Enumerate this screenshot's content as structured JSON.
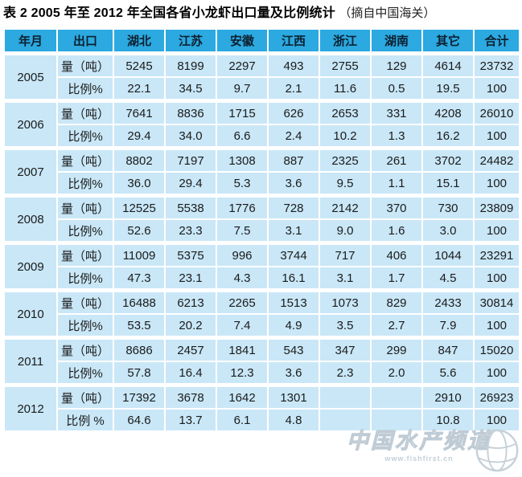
{
  "title": {
    "main": "表 2 2005 年至 2012 年全国各省小龙虾出口量及比例统计",
    "source": "（摘自中国海关）"
  },
  "colors": {
    "header_bg": "#2ba9e0",
    "cell_bg": "#c9e7f7",
    "gridline": "#ffffff",
    "text": "#1b1b1b"
  },
  "chart_data": {
    "type": "table",
    "title": "表 2 2005 年至 2012 年全国各省小龙虾出口量及比例统计",
    "source_note": "（摘自中国海关）",
    "columns": [
      "年月",
      "出口",
      "湖北",
      "江苏",
      "安徽",
      "江西",
      "浙江",
      "湖南",
      "其它",
      "合计"
    ],
    "years": [
      {
        "year": "2005",
        "qty_label": "量（吨）",
        "pct_label": "比例%",
        "qty": [
          "5245",
          "8199",
          "2297",
          "493",
          "2755",
          "129",
          "4614",
          "23732"
        ],
        "pct": [
          "22.1",
          "34.5",
          "9.7",
          "2.1",
          "11.6",
          "0.5",
          "19.5",
          "100"
        ]
      },
      {
        "year": "2006",
        "qty_label": "量（吨）",
        "pct_label": "比例%",
        "qty": [
          "7641",
          "8836",
          "1715",
          "626",
          "2653",
          "331",
          "4208",
          "26010"
        ],
        "pct": [
          "29.4",
          "34.0",
          "6.6",
          "2.4",
          "10.2",
          "1.3",
          "16.2",
          "100"
        ]
      },
      {
        "year": "2007",
        "qty_label": "量（吨）",
        "pct_label": "比例%",
        "qty": [
          "8802",
          "7197",
          "1308",
          "887",
          "2325",
          "261",
          "3702",
          "24482"
        ],
        "pct": [
          "36.0",
          "29.4",
          "5.3",
          "3.6",
          "9.5",
          "1.1",
          "15.1",
          "100"
        ]
      },
      {
        "year": "2008",
        "qty_label": "量（吨）",
        "pct_label": "比例%",
        "qty": [
          "12525",
          "5538",
          "1776",
          "728",
          "2142",
          "370",
          "730",
          "23809"
        ],
        "pct": [
          "52.6",
          "23.3",
          "7.5",
          "3.1",
          "9.0",
          "1.6",
          "3.0",
          "100"
        ]
      },
      {
        "year": "2009",
        "qty_label": "量（吨）",
        "pct_label": "比例%",
        "qty": [
          "11009",
          "5375",
          "996",
          "3744",
          "717",
          "406",
          "1044",
          "23291"
        ],
        "pct": [
          "47.3",
          "23.1",
          "4.3",
          "16.1",
          "3.1",
          "1.7",
          "4.5",
          "100"
        ]
      },
      {
        "year": "2010",
        "qty_label": "量（吨）",
        "pct_label": "比例%",
        "qty": [
          "16488",
          "6213",
          "2265",
          "1513",
          "1073",
          "829",
          "2433",
          "30814"
        ],
        "pct": [
          "53.5",
          "20.2",
          "7.4",
          "4.9",
          "3.5",
          "2.7",
          "7.9",
          "100"
        ]
      },
      {
        "year": "2011",
        "qty_label": "量（吨）",
        "pct_label": "比例%",
        "qty": [
          "8686",
          "2457",
          "1841",
          "543",
          "347",
          "299",
          "847",
          "15020"
        ],
        "pct": [
          "57.8",
          "16.4",
          "12.3",
          "3.6",
          "2.3",
          "2.0",
          "5.6",
          "100"
        ]
      },
      {
        "year": "2012",
        "qty_label": "量（吨）",
        "pct_label": "比例 %",
        "qty": [
          "17392",
          "3678",
          "1642",
          "1301",
          "",
          "",
          "2910",
          "26923"
        ],
        "pct": [
          "64.6",
          "13.7",
          "6.1",
          "4.8",
          "",
          "",
          "10.8",
          "100"
        ]
      }
    ]
  },
  "watermark": {
    "brand": "中国水产频道",
    "url": "www.fishfirst.cn"
  }
}
